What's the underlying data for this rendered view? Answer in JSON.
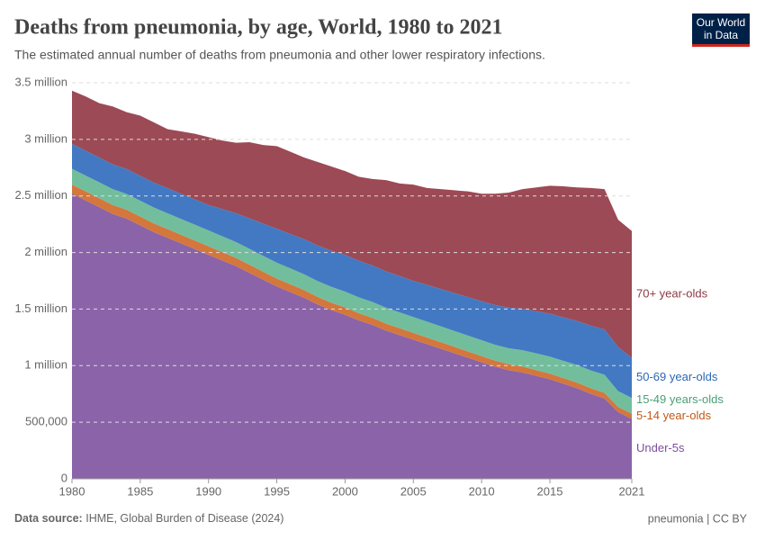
{
  "chart_data": {
    "type": "stacked-area",
    "title": "Deaths from pneumonia, by age, World, 1980 to 2021",
    "subtitle": "The estimated annual number of deaths from pneumonia and other lower respiratory infections.",
    "logo": [
      "Our World",
      "in Data"
    ],
    "source_label": "Data source:",
    "source": "IHME, Global Burden of Disease (2024)",
    "footer_right": "pneumonia | CC BY",
    "x": [
      1980,
      1981,
      1982,
      1983,
      1984,
      1985,
      1986,
      1987,
      1988,
      1989,
      1990,
      1991,
      1992,
      1993,
      1994,
      1995,
      1996,
      1997,
      1998,
      1999,
      2000,
      2001,
      2002,
      2003,
      2004,
      2005,
      2006,
      2007,
      2008,
      2009,
      2010,
      2011,
      2012,
      2013,
      2014,
      2015,
      2016,
      2017,
      2018,
      2019,
      2020,
      2021
    ],
    "xlim": [
      1980,
      2021
    ],
    "xticks": [
      1980,
      1985,
      1990,
      1995,
      2000,
      2005,
      2010,
      2015,
      2021
    ],
    "ylim": [
      0,
      3500000
    ],
    "yticks": [
      0,
      {
        "value": 500000,
        "label": "500,000"
      },
      {
        "value": 1000000,
        "label": "1 million"
      },
      {
        "value": 1500000,
        "label": "1.5 million"
      },
      {
        "value": 2000000,
        "label": "2 million"
      },
      {
        "value": 2500000,
        "label": "2.5 million"
      },
      {
        "value": 3000000,
        "label": "3 million"
      },
      {
        "value": 3500000,
        "label": "3.5 million"
      }
    ],
    "grid": true,
    "series": [
      {
        "name": "Under-5s",
        "color": "#8a63a9",
        "label_color": "#7b4f9e",
        "values": [
          2520000,
          2460000,
          2400000,
          2340000,
          2300000,
          2240000,
          2180000,
          2130000,
          2080000,
          2030000,
          1980000,
          1930000,
          1880000,
          1820000,
          1760000,
          1700000,
          1650000,
          1600000,
          1540000,
          1490000,
          1450000,
          1400000,
          1360000,
          1310000,
          1270000,
          1230000,
          1190000,
          1150000,
          1110000,
          1070000,
          1030000,
          990000,
          960000,
          940000,
          910000,
          880000,
          840000,
          800000,
          750000,
          710000,
          590000,
          530000
        ]
      },
      {
        "name": "5-14 year-olds",
        "color": "#d4773d",
        "label_color": "#c05917",
        "values": [
          80000,
          80000,
          80000,
          79000,
          78000,
          78000,
          77000,
          77000,
          76000,
          76000,
          75000,
          74000,
          73000,
          72000,
          71000,
          70000,
          69000,
          68000,
          67000,
          66000,
          65000,
          64000,
          63000,
          62000,
          61000,
          60000,
          59000,
          58000,
          57000,
          56000,
          55000,
          54000,
          53000,
          52000,
          51000,
          50000,
          50000,
          50000,
          50000,
          50000,
          45000,
          45000
        ]
      },
      {
        "name": "15-49 years-olds",
        "color": "#72be9c",
        "label_color": "#4c9e78",
        "values": [
          140000,
          140000,
          140000,
          140000,
          140000,
          140000,
          140000,
          140000,
          140000,
          140000,
          140000,
          140000,
          140000,
          140000,
          140000,
          140000,
          140000,
          140000,
          140000,
          140000,
          140000,
          140000,
          140000,
          140000,
          140000,
          140000,
          140000,
          140000,
          140000,
          140000,
          140000,
          140000,
          140000,
          145000,
          148000,
          150000,
          152000,
          155000,
          158000,
          160000,
          140000,
          140000
        ]
      },
      {
        "name": "50-69 year-olds",
        "color": "#4379c2",
        "label_color": "#2d66b3",
        "values": [
          220000,
          220000,
          220000,
          220000,
          220000,
          220000,
          221000,
          222000,
          223000,
          224000,
          225000,
          240000,
          255000,
          270000,
          285000,
          300000,
          305000,
          310000,
          315000,
          320000,
          325000,
          324000,
          323000,
          322000,
          321000,
          320000,
          325000,
          330000,
          335000,
          340000,
          345000,
          352000,
          359000,
          366000,
          373000,
          380000,
          385000,
          390000,
          395000,
          400000,
          390000,
          355000
        ]
      },
      {
        "name": "70+ year-olds",
        "color": "#9c4a55",
        "label_color": "#8c3a45",
        "values": [
          470000,
          480000,
          480000,
          511000,
          502000,
          532000,
          532000,
          521000,
          551000,
          580000,
          600000,
          606000,
          622000,
          673000,
          694000,
          730000,
          726000,
          722000,
          738000,
          744000,
          740000,
          742000,
          764000,
          806000,
          818000,
          850000,
          856000,
          882000,
          908000,
          934000,
          950000,
          984000,
          1018000,
          1057000,
          1093000,
          1130000,
          1158000,
          1180000,
          1217000,
          1240000,
          1125000,
          1120000
        ]
      }
    ]
  }
}
